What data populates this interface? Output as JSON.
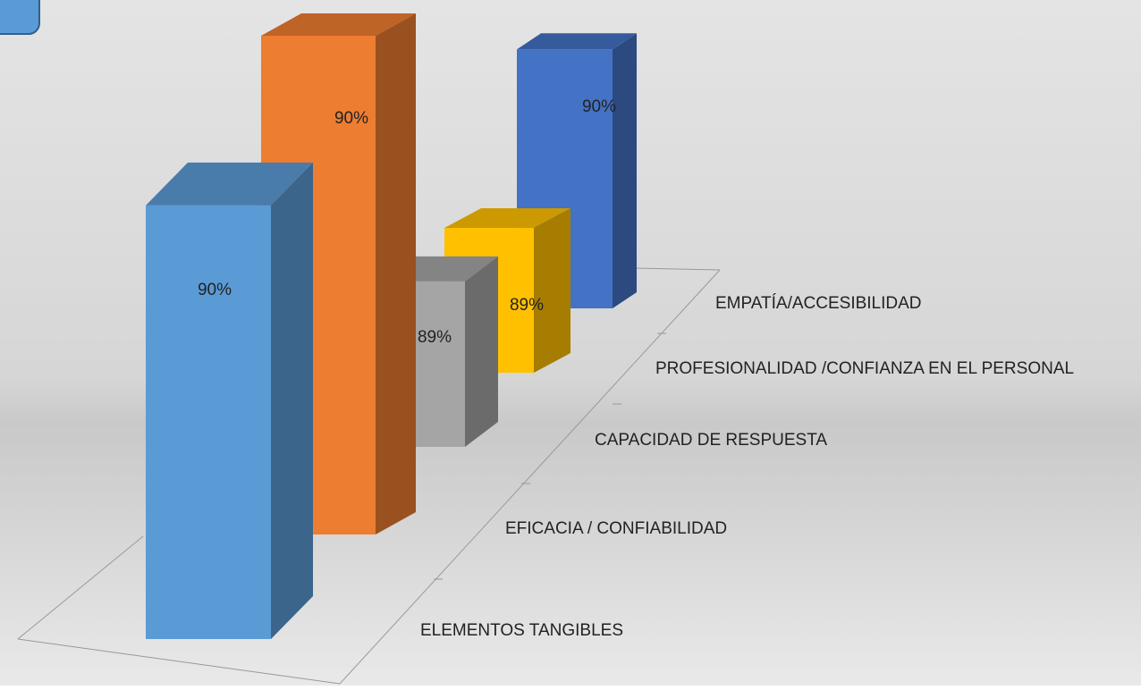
{
  "chart_data": {
    "type": "bar3d",
    "categories": [
      "ELEMENTOS TANGIBLES",
      "EFICACIA / CONFIABILIDAD",
      "CAPACIDAD DE RESPUESTA",
      "PROFESIONALIDAD /CONFIANZA EN EL PERSONAL",
      "EMPATÍA/ACCESIBILIDAD"
    ],
    "values": [
      90,
      90,
      89,
      89,
      90
    ],
    "value_labels": [
      "90%",
      "90%",
      "89%",
      "89%",
      "90%"
    ],
    "colors": [
      "#5b9bd5",
      "#ed7d31",
      "#a5a5a5",
      "#ffc000",
      "#4472c4"
    ]
  }
}
